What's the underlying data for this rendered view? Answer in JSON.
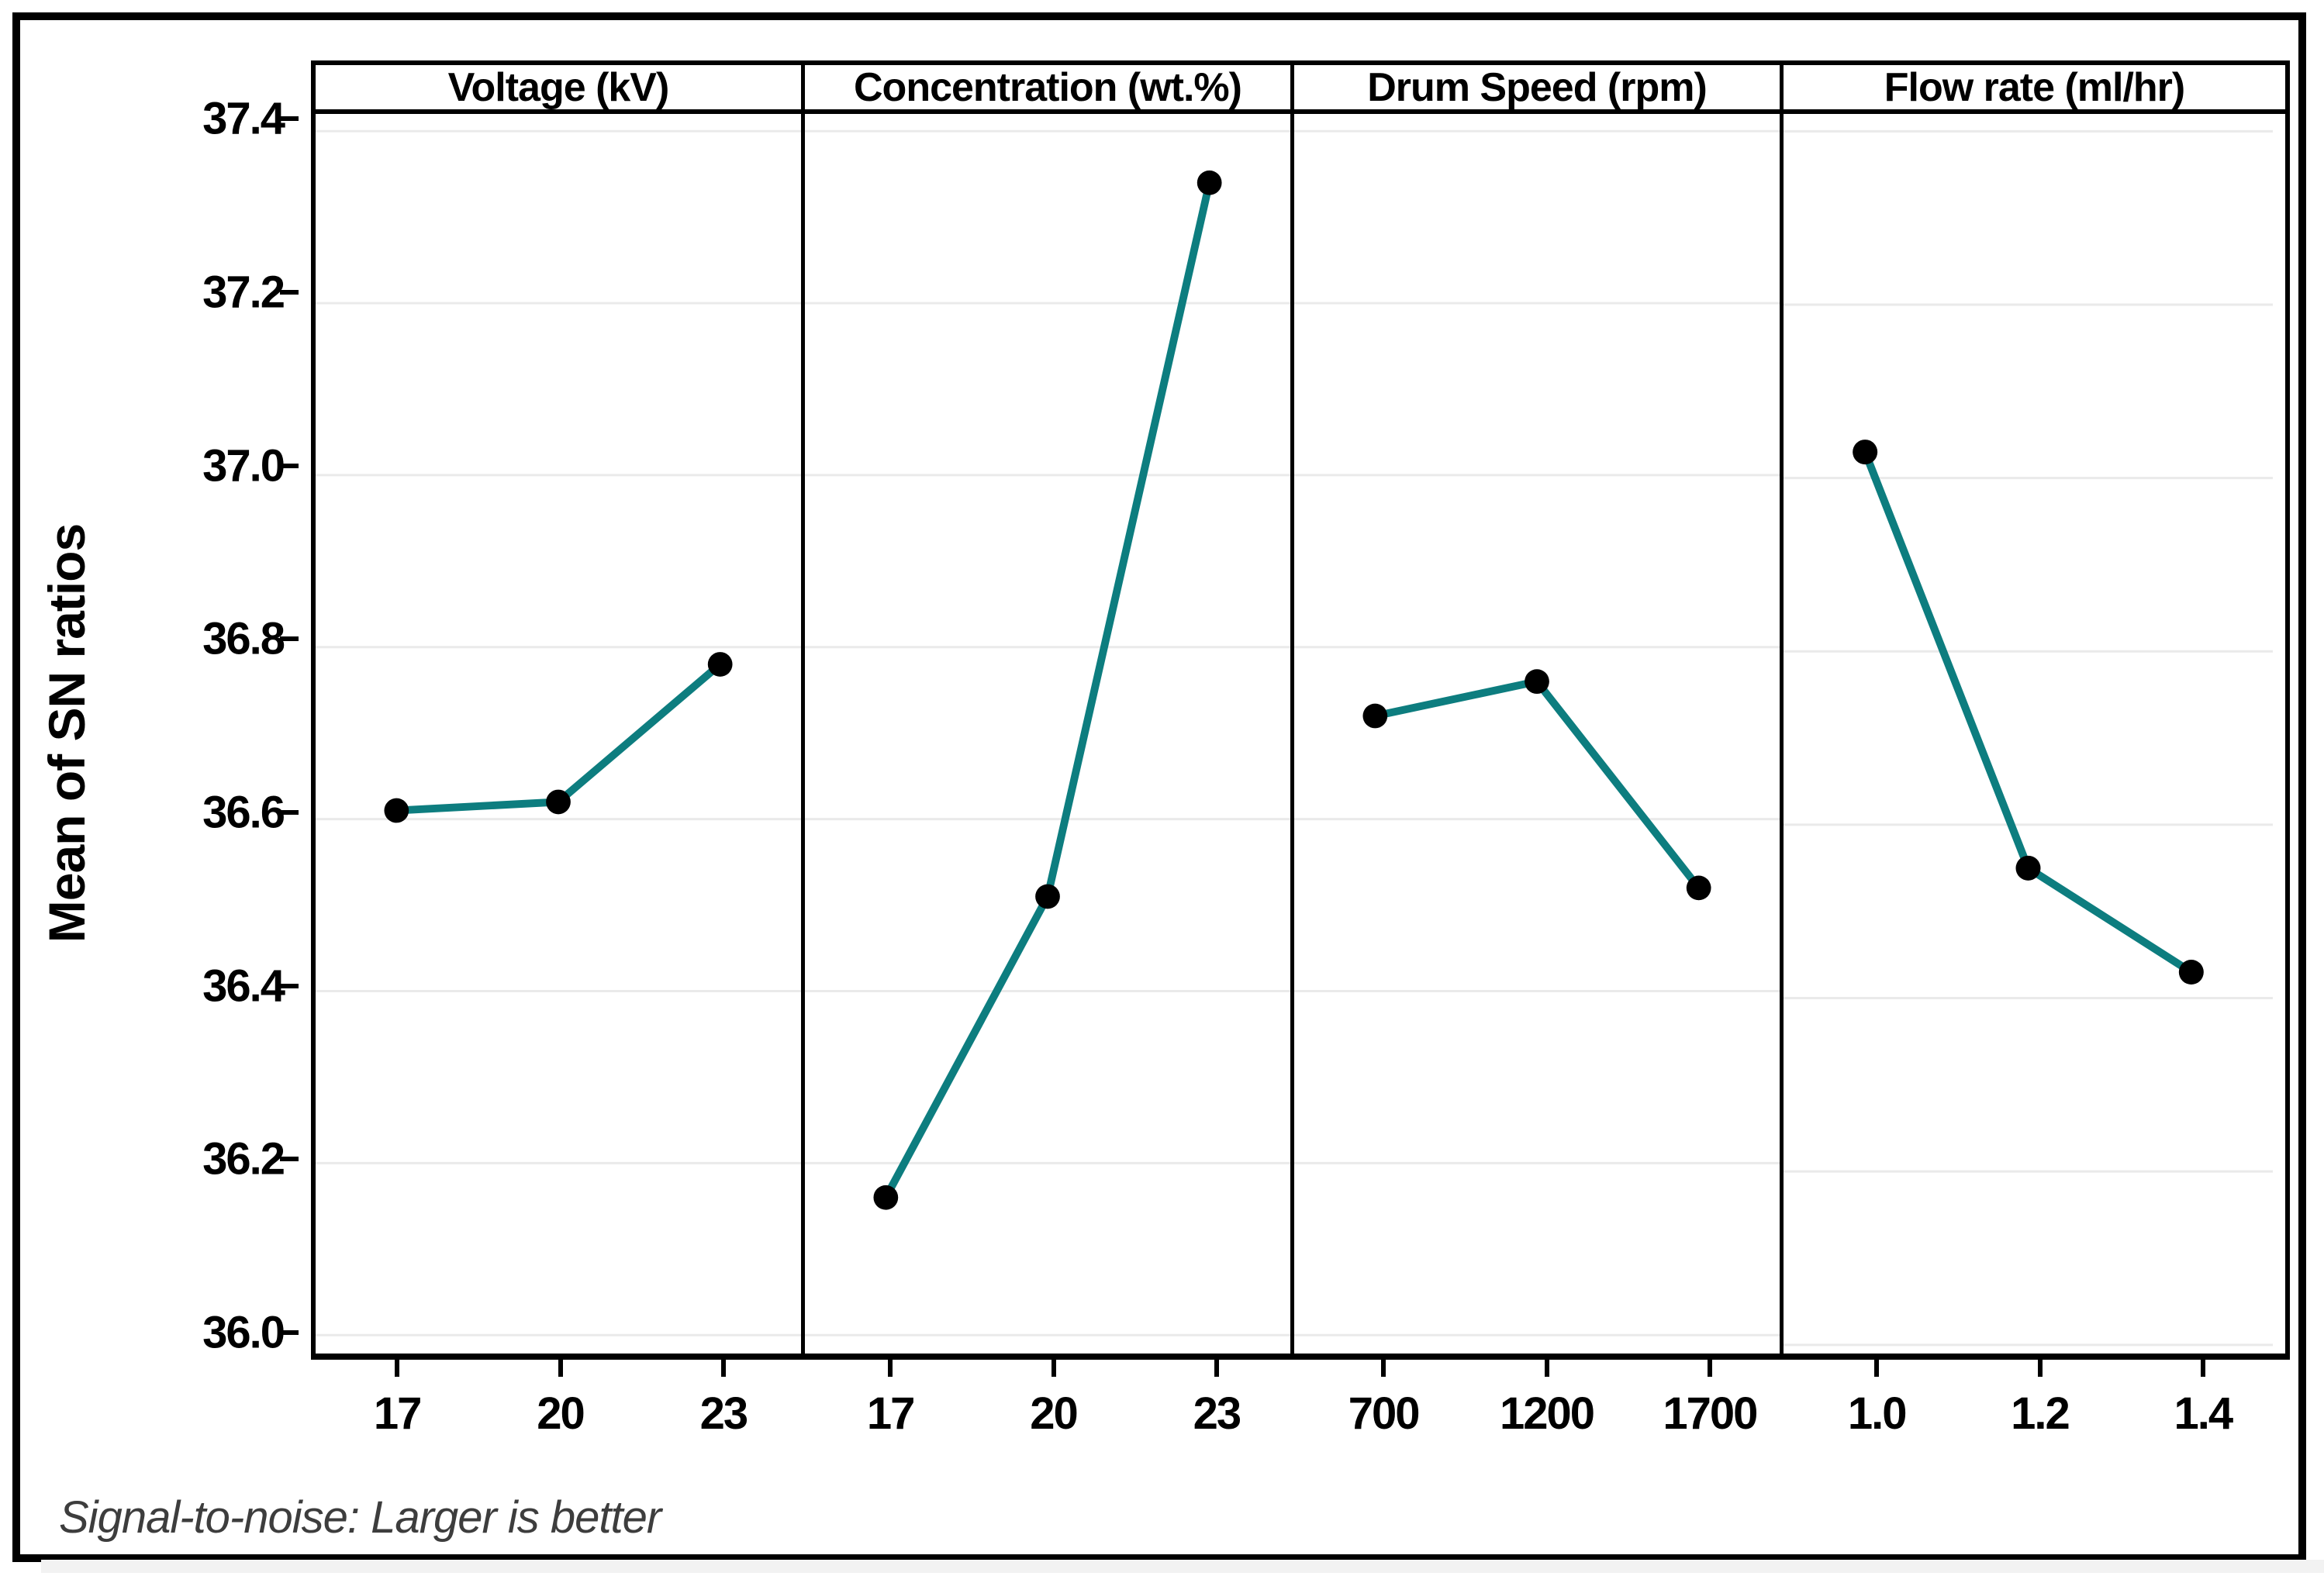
{
  "figure": {
    "ylabel": "Mean of SN ratios",
    "footer": "Signal-to-noise: Larger is better"
  },
  "chart_data": {
    "type": "line",
    "title": "",
    "ylabel": "Mean of SN ratios",
    "footnote": "Signal-to-noise: Larger is better",
    "ylim": [
      35.99,
      37.42
    ],
    "yticks": [
      36.0,
      36.2,
      36.4,
      36.6,
      36.8,
      37.0,
      37.2,
      37.4
    ],
    "grid": true,
    "legend_position": "none",
    "line_color": "#0D7D7F",
    "marker_color": "#000000",
    "grid_color": "#EAEAEA",
    "panels": [
      {
        "title": "Voltage (kV)",
        "categories": [
          "17",
          "20",
          "23"
        ],
        "values": [
          36.61,
          36.62,
          36.78
        ]
      },
      {
        "title": "Concentration (wt.%)",
        "categories": [
          "17",
          "20",
          "23"
        ],
        "values": [
          36.16,
          36.51,
          37.34
        ]
      },
      {
        "title": "Drum Speed (rpm)",
        "categories": [
          "700",
          "1200",
          "1700"
        ],
        "values": [
          36.72,
          36.76,
          36.52
        ]
      },
      {
        "title": "Flow rate (ml/hr)",
        "categories": [
          "1.0",
          "1.2",
          "1.4"
        ],
        "values": [
          37.03,
          36.55,
          36.43
        ]
      }
    ]
  }
}
